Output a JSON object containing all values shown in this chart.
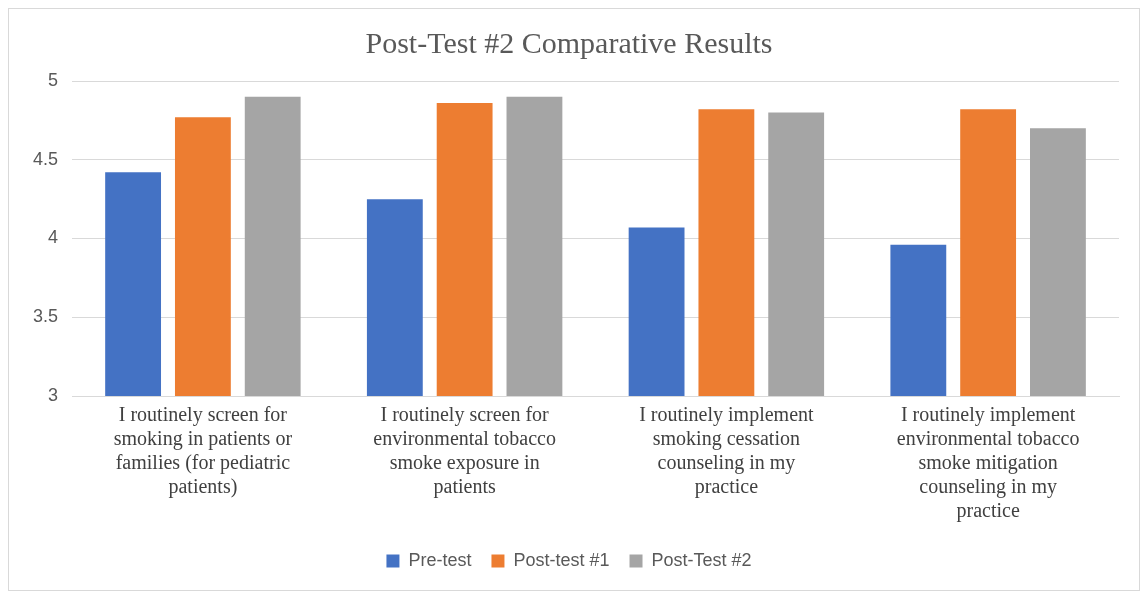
{
  "chart_data": {
    "type": "bar",
    "title": "Post-Test #2 Comparative Results",
    "categories": [
      "I routinely screen for smoking in patients or families (for pediatric patients)",
      "I routinely screen for environmental tobacco smoke exposure in patients",
      "I routinely implement smoking cessation counseling in my practice",
      "I routinely implement environmental tobacco smoke mitigation counseling in my practice"
    ],
    "series": [
      {
        "name": "Pre-test",
        "color": "#4472c4",
        "values": [
          4.42,
          4.25,
          4.07,
          3.96
        ]
      },
      {
        "name": "Post-test #1",
        "color": "#ed7d31",
        "values": [
          4.77,
          4.86,
          4.82,
          4.82
        ]
      },
      {
        "name": "Post-Test #2",
        "color": "#a5a5a5",
        "values": [
          4.9,
          4.9,
          4.8,
          4.7
        ]
      }
    ],
    "ylim": [
      3,
      5
    ],
    "yticks": [
      3,
      3.5,
      4,
      4.5,
      5
    ],
    "grid": "y",
    "legend": "bottom"
  }
}
